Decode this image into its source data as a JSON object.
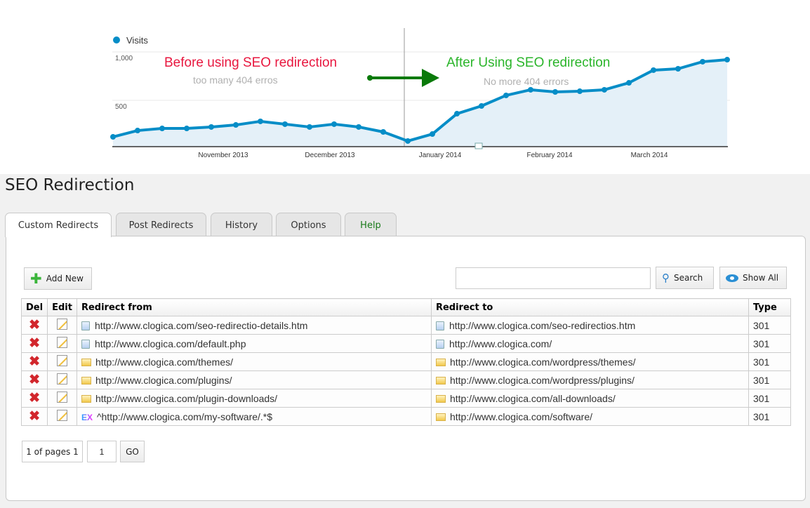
{
  "chart_data": {
    "type": "area",
    "legend": "Visits",
    "legend_position": "top-left",
    "y_ticks": [
      "500",
      "1,000"
    ],
    "y_tick_values": [
      500,
      1000
    ],
    "x_tick_labels": [
      "November 2013",
      "December 2013",
      "January 2014",
      "February 2014",
      "March 2014"
    ],
    "series": [
      {
        "name": "Visits",
        "color": "#058dc7",
        "values": [
          123,
          188,
          210,
          210,
          225,
          246,
          283,
          254,
          225,
          254,
          225,
          174,
          80,
          152,
          362,
          442,
          551,
          609,
          587,
          594,
          609,
          681,
          812,
          826,
          899,
          920
        ]
      }
    ],
    "grid": true,
    "annotations": {
      "before_title": "Before using SEO redirection",
      "before_sub": "too many 404 erros",
      "after_title": "After Using SEO redirection",
      "after_sub": "No more 404 errors",
      "before_color": "#e8173f",
      "after_color": "#2bb52b",
      "arrow_color": "#0a7a0a"
    }
  },
  "page": {
    "title": "SEO Redirection"
  },
  "tabs": [
    {
      "label": "Custom Redirects"
    },
    {
      "label": "Post Redirects"
    },
    {
      "label": "History"
    },
    {
      "label": "Options"
    },
    {
      "label": "Help"
    }
  ],
  "toolbar": {
    "add_new": "Add New",
    "search_value": "",
    "search": "Search",
    "show_all": "Show All"
  },
  "table": {
    "headers": [
      "Del",
      "Edit",
      "Redirect from",
      "Redirect to",
      "Type"
    ],
    "rows": [
      {
        "from_icon": "file",
        "from": "http://www.clogica.com/seo-redirectio-details.htm",
        "to_icon": "file",
        "to": "http://www.clogica.com/seo-redirectios.htm",
        "type": "301"
      },
      {
        "from_icon": "file",
        "from": "http://www.clogica.com/default.php",
        "to_icon": "file",
        "to": "http://www.clogica.com/",
        "type": "301"
      },
      {
        "from_icon": "folder",
        "from": "http://www.clogica.com/themes/",
        "to_icon": "folder",
        "to": "http://www.clogica.com/wordpress/themes/",
        "type": "301"
      },
      {
        "from_icon": "folder",
        "from": "http://www.clogica.com/plugins/",
        "to_icon": "folder",
        "to": "http://www.clogica.com/wordpress/plugins/",
        "type": "301"
      },
      {
        "from_icon": "folder",
        "from": "http://www.clogica.com/plugin-downloads/",
        "to_icon": "folder",
        "to": "http://www.clogica.com/all-downloads/",
        "type": "301"
      },
      {
        "from_icon": "regex",
        "from_badge": "EX",
        "from": "^http://www.clogica.com/my-software/.*$",
        "to_icon": "folder",
        "to": "http://www.clogica.com/software/",
        "type": "301"
      }
    ]
  },
  "pagination": {
    "info": "1 of pages 1",
    "page_value": "1",
    "go": "GO"
  }
}
